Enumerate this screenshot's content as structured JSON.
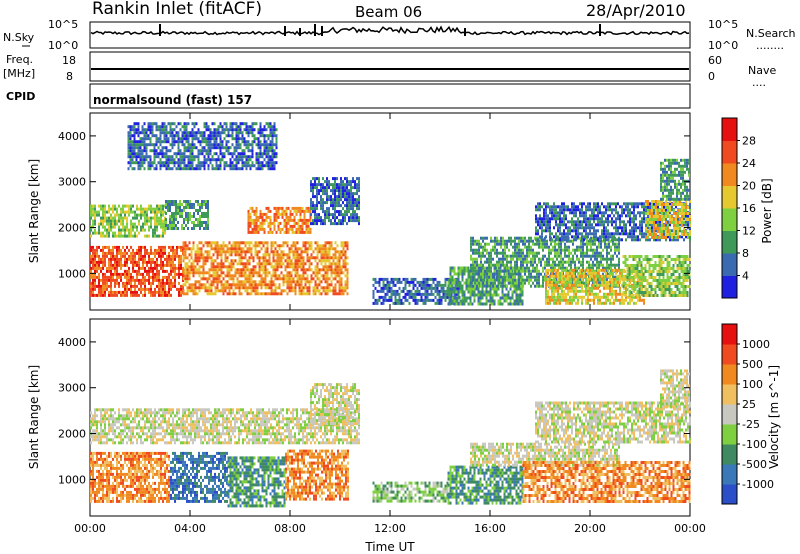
{
  "header": {
    "station": "Rankin Inlet (fitACF)",
    "beam": "Beam 06",
    "date": "28/Apr/2010"
  },
  "strips": {
    "nsky_label": "N.Sky",
    "nsearch_label": "N.Search",
    "nsky_ticks": [
      "10^5",
      "10^0"
    ],
    "nsearch_ticks": [
      "10^5",
      "10^0"
    ],
    "freq_label": "Freq.",
    "freq_unit": "[MHz]",
    "freq_ticks": [
      "18",
      "8"
    ],
    "nave_label": "Nave",
    "nave_ticks": [
      "60",
      "0"
    ],
    "cpid_label": "CPID",
    "cpid_text": "normalsound (fast) 157"
  },
  "legend_dots": "........",
  "nave_dots": "....",
  "chart_data": [
    {
      "type": "heatmap",
      "name": "power-panel",
      "ylabel": "Slant Range [km]",
      "xlabel": "",
      "x_ticks": [
        "00:00",
        "04:00",
        "08:00",
        "12:00",
        "16:00",
        "20:00",
        "00:00"
      ],
      "y_ticks": [
        "1000",
        "2000",
        "3000",
        "4000"
      ],
      "ylim": [
        200,
        4500
      ],
      "xlim_hours": [
        0,
        24
      ],
      "colorbar": {
        "label": "Power [dB]",
        "ticks": [
          "4",
          "8",
          "12",
          "16",
          "20",
          "24",
          "28"
        ],
        "colors": [
          "#2020e0",
          "#3a6ab0",
          "#3f9a5a",
          "#7fd040",
          "#e6c830",
          "#f08a20",
          "#f04a20",
          "#e61010"
        ]
      },
      "regions": [
        {
          "t0": 0.0,
          "t1": 3.0,
          "r0": 1800,
          "r1": 2500,
          "c": 3
        },
        {
          "t0": 3.0,
          "t1": 4.7,
          "r0": 2000,
          "r1": 2600,
          "c": 2
        },
        {
          "t0": 6.3,
          "t1": 8.8,
          "r0": 1900,
          "r1": 2450,
          "c": 5
        },
        {
          "t0": 8.8,
          "t1": 10.8,
          "r0": 2100,
          "r1": 3100,
          "c": 1
        },
        {
          "t0": 0.0,
          "t1": 3.7,
          "r0": 500,
          "r1": 1600,
          "c": 6
        },
        {
          "t0": 3.7,
          "t1": 10.3,
          "r0": 550,
          "r1": 1700,
          "c": 5
        },
        {
          "t0": 11.3,
          "t1": 14.8,
          "r0": 350,
          "r1": 900,
          "c": 1
        },
        {
          "t0": 14.3,
          "t1": 17.3,
          "r0": 350,
          "r1": 1150,
          "c": 2
        },
        {
          "t0": 15.2,
          "t1": 21.2,
          "r0": 700,
          "r1": 1800,
          "c": 2
        },
        {
          "t0": 18.2,
          "t1": 22.2,
          "r0": 350,
          "r1": 1100,
          "c": 4
        },
        {
          "t0": 21.3,
          "t1": 24.0,
          "r0": 500,
          "r1": 1400,
          "c": 3
        },
        {
          "t0": 17.8,
          "t1": 24.0,
          "r0": 1700,
          "r1": 2550,
          "c": 1
        },
        {
          "t0": 22.2,
          "t1": 24.0,
          "r0": 1800,
          "r1": 2600,
          "c": 4
        },
        {
          "t0": 22.8,
          "t1": 24.0,
          "r0": 2600,
          "r1": 3500,
          "c": 2
        },
        {
          "t0": 1.5,
          "t1": 7.5,
          "r0": 3300,
          "r1": 4300,
          "c": 1
        }
      ]
    },
    {
      "type": "heatmap",
      "name": "velocity-panel",
      "ylabel": "Slant Range [km]",
      "xlabel": "Time UT",
      "x_ticks": [
        "00:00",
        "04:00",
        "08:00",
        "12:00",
        "16:00",
        "20:00",
        "00:00"
      ],
      "y_ticks": [
        "1000",
        "2000",
        "3000",
        "4000"
      ],
      "ylim": [
        200,
        4500
      ],
      "xlim_hours": [
        0,
        24
      ],
      "colorbar": {
        "label": "Velocity [m s^-1]",
        "ticks": [
          "1000",
          "500",
          "100",
          "25",
          "-25",
          "-100",
          "-500",
          "-1000"
        ],
        "colors": [
          "#2a4fc8",
          "#3a78b8",
          "#3f8a60",
          "#7fd040",
          "#c8c8c0",
          "#f0c060",
          "#f08a20",
          "#f04a20",
          "#e61010"
        ]
      },
      "regions": [
        {
          "t0": 0.0,
          "t1": 10.8,
          "r0": 1800,
          "r1": 2550,
          "c": 4
        },
        {
          "t0": 8.8,
          "t1": 10.8,
          "r0": 2200,
          "r1": 3100,
          "c": 4
        },
        {
          "t0": 0.0,
          "t1": 3.2,
          "r0": 500,
          "r1": 1600,
          "c": 6
        },
        {
          "t0": 3.2,
          "t1": 5.5,
          "r0": 500,
          "r1": 1600,
          "c": 1
        },
        {
          "t0": 5.5,
          "t1": 7.8,
          "r0": 450,
          "r1": 1500,
          "c": 2
        },
        {
          "t0": 7.8,
          "t1": 10.3,
          "r0": 550,
          "r1": 1650,
          "c": 6
        },
        {
          "t0": 11.3,
          "t1": 14.3,
          "r0": 550,
          "r1": 950,
          "c": 3
        },
        {
          "t0": 14.3,
          "t1": 17.3,
          "r0": 500,
          "r1": 1300,
          "c": 2
        },
        {
          "t0": 15.2,
          "t1": 21.2,
          "r0": 1300,
          "r1": 1800,
          "c": 4
        },
        {
          "t0": 17.3,
          "t1": 24.0,
          "r0": 500,
          "r1": 1400,
          "c": 6
        },
        {
          "t0": 17.8,
          "t1": 24.0,
          "r0": 1800,
          "r1": 2700,
          "c": 4
        },
        {
          "t0": 22.8,
          "t1": 24.0,
          "r0": 2600,
          "r1": 3400,
          "c": 4
        }
      ]
    }
  ]
}
